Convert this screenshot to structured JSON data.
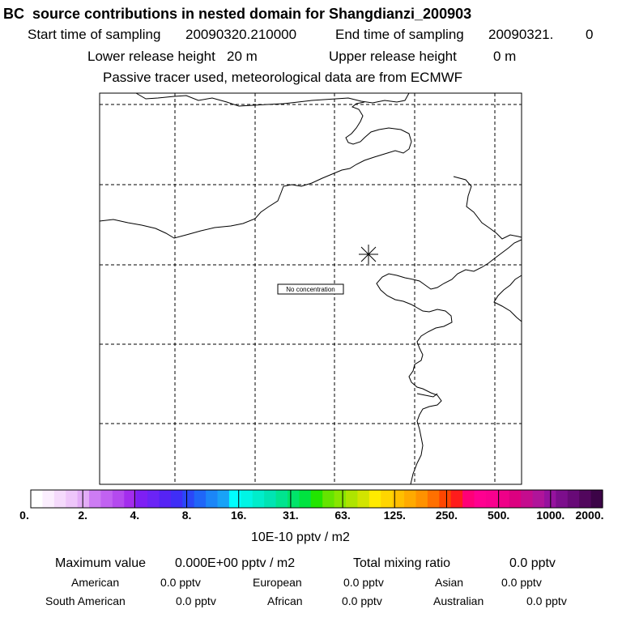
{
  "header": {
    "title": "BC  source contributions in nested domain for Shangdianzi_200903",
    "start_label": "Start time of sampling",
    "start_value": "20090320.210000",
    "end_label": "End time of sampling",
    "end_value": "20090321.",
    "end_value2": "0",
    "lower_label": "Lower release height",
    "lower_value": "20 m",
    "upper_label": "Upper release height",
    "upper_value": "0 m",
    "note": "Passive tracer used, meteorological data are from ECMWF"
  },
  "map": {
    "no_concentration": "No concentration"
  },
  "chart_data": {
    "type": "heatmap",
    "title": "BC  source contributions in nested domain for Shangdianzi_200903",
    "colorbar": {
      "tick_labels": [
        "0.",
        "2.",
        "4.",
        "8.",
        "16.",
        "31.",
        "63.",
        "125.",
        "250.",
        "500.",
        "1000.",
        "2000."
      ],
      "units": "10E-10 pptv / m2",
      "colors": [
        "#ffffff",
        "#fbeefe",
        "#f5dafc",
        "#eec6fa",
        "#e3acf7",
        "#cd7cf3",
        "#c162f1",
        "#b44aee",
        "#a32ded",
        "#7e1ff4",
        "#6b24f6",
        "#5623f5",
        "#3f2ef7",
        "#2a47f8",
        "#1f66f8",
        "#1b86f8",
        "#19a2f7",
        "#00ffff",
        "#00f5e5",
        "#00edcb",
        "#00e4b3",
        "#00e48f",
        "#00e46a",
        "#00e340",
        "#22e500",
        "#65e400",
        "#88e500",
        "#aee400",
        "#d2e400",
        "#ffea00",
        "#ffd500",
        "#ffbf00",
        "#ffaa00",
        "#ff9200",
        "#ff7000",
        "#ff4600",
        "#ff1c1c",
        "#ff0077",
        "#ff0090",
        "#f9008e",
        "#ef0088",
        "#dc0080",
        "#c50c8e",
        "#b0149a",
        "#96129e",
        "#7c0e8c",
        "#680a77",
        "#52075d",
        "#3c0447"
      ]
    },
    "values": [],
    "maximum_value": "0.000E+00"
  },
  "stats": {
    "max_label": "Maximum value",
    "max_value": "0.000E+00 pptv / m2",
    "total_label": "Total mixing ratio",
    "total_value": "0.0 pptv",
    "american_label": "American",
    "american_value": "0.0 pptv",
    "european_label": "European",
    "european_value": "0.0 pptv",
    "asian_label": "Asian",
    "asian_value": "0.0 pptv",
    "south_american_label": "South American",
    "south_american_value": "0.0 pptv",
    "african_label": "African",
    "african_value": "0.0 pptv",
    "australian_label": "Australian",
    "australian_value": "0.0 pptv"
  }
}
